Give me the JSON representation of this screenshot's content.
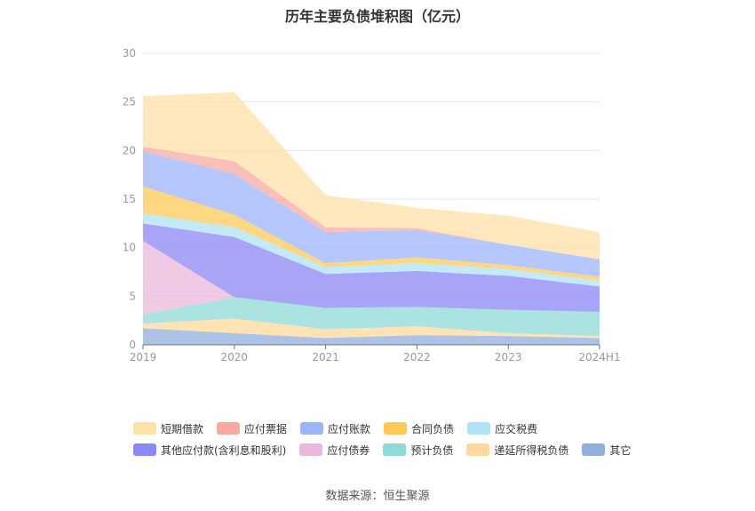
{
  "chart_data": {
    "type": "area",
    "stacked": true,
    "title": "历年主要负债堆积图（亿元）",
    "source": "数据来源：恒生聚源",
    "categories": [
      "2019",
      "2020",
      "2021",
      "2022",
      "2023",
      "2024H1"
    ],
    "ylim": [
      0,
      30
    ],
    "yticks": [
      "0",
      "5",
      "10",
      "15",
      "20",
      "25",
      "30"
    ],
    "grid": true,
    "legend_position": "bottom",
    "series": [
      {
        "name": "其它",
        "color": "#8fb0dc",
        "values": [
          1.7,
          1.2,
          0.7,
          1.0,
          0.9,
          0.7
        ]
      },
      {
        "name": "递延所得税负债",
        "color": "#ffd99b",
        "values": [
          0.5,
          1.5,
          0.9,
          0.9,
          0.3,
          0.2
        ]
      },
      {
        "name": "预计负债",
        "color": "#8fdad6",
        "values": [
          0.9,
          2.2,
          2.2,
          2.0,
          2.4,
          2.5
        ]
      },
      {
        "name": "应付债券",
        "color": "#ebb7dc",
        "values": [
          7.6,
          0.0,
          0.0,
          0.0,
          0.0,
          0.0
        ]
      },
      {
        "name": "其他应付款(含利息和股利)",
        "color": "#8b87f5",
        "values": [
          1.8,
          6.2,
          3.5,
          3.7,
          3.5,
          2.6
        ]
      },
      {
        "name": "应交税费",
        "color": "#aee3f7",
        "values": [
          1.0,
          1.0,
          0.7,
          0.8,
          0.7,
          0.6
        ]
      },
      {
        "name": "合同负债",
        "color": "#fdca58",
        "values": [
          2.8,
          1.3,
          0.4,
          0.6,
          0.4,
          0.4
        ]
      },
      {
        "name": "应付账款",
        "color": "#9cb4fc",
        "values": [
          3.6,
          4.2,
          3.2,
          2.8,
          2.1,
          1.8
        ]
      },
      {
        "name": "应付票据",
        "color": "#f8aaa1",
        "values": [
          0.5,
          1.3,
          0.5,
          0.2,
          0.0,
          0.0
        ]
      },
      {
        "name": "短期借款",
        "color": "#ffe0a8",
        "values": [
          5.2,
          7.1,
          3.3,
          2.1,
          3.0,
          2.8
        ]
      }
    ],
    "legend_rows": [
      [
        "短期借款",
        "应付票据",
        "应付账款",
        "合同负债",
        "应交税费"
      ],
      [
        "其他应付款(含利息和股利)",
        "应付债券",
        "预计负债",
        "递延所得税负债",
        "其它"
      ]
    ]
  }
}
